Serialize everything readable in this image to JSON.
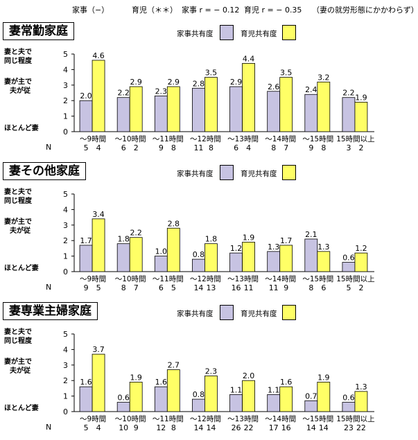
{
  "header": {
    "kaji": "家事（−）",
    "ikuji": "育児（＊＊）",
    "r_kaji": "家事 r = − 0.12",
    "r_ikuji": "育児 r = − 0.35",
    "note": "（妻の就労形態にかかわらず）"
  },
  "colors": {
    "kaji": "#c7c3e2",
    "ikuji": "#ffff66"
  },
  "y_labels": {
    "top": [
      "妻と夫で",
      "同じ程度"
    ],
    "mid": [
      "妻が主で",
      "夫が従"
    ],
    "bottom": "ほとんど妻"
  },
  "n_label": "N",
  "chart_data": [
    {
      "type": "bar",
      "title": "妻常勤家庭",
      "categories": [
        "〜9時間",
        "〜10時間",
        "〜11時間",
        "〜12時間",
        "〜13時間",
        "〜14時間",
        "〜15時間",
        "15時間以上"
      ],
      "ylim": [
        0,
        5
      ],
      "yticks": [
        0,
        1,
        2,
        3,
        4,
        5
      ],
      "series": [
        {
          "name": "家事共有度",
          "values": [
            2.0,
            2.2,
            2.3,
            2.8,
            2.9,
            2.6,
            2.4,
            2.2
          ],
          "labels": [
            "2.0",
            "2.2",
            "2.3",
            "2.8",
            "2.9",
            "2.6",
            "2.4",
            "2.2"
          ]
        },
        {
          "name": "育児共有度",
          "values": [
            4.6,
            2.9,
            2.9,
            3.5,
            4.4,
            3.5,
            3.2,
            1.9
          ],
          "labels": [
            "4.6",
            "2.9",
            "2.9",
            "3.5",
            "4.4",
            "3.5",
            "3.2",
            "1.9"
          ]
        }
      ],
      "n": [
        [
          "5",
          "4"
        ],
        [
          "6",
          "2"
        ],
        [
          "9",
          "8"
        ],
        [
          "11",
          "8"
        ],
        [
          "6",
          "4"
        ],
        [
          "8",
          "7"
        ],
        [
          "9",
          "8"
        ],
        [
          "3",
          "2"
        ]
      ]
    },
    {
      "type": "bar",
      "title": "妻その他家庭",
      "categories": [
        "〜9時間",
        "〜10時間",
        "〜11時間",
        "〜12時間",
        "〜13時間",
        "〜14時間",
        "〜15時間",
        "15時間以上"
      ],
      "ylim": [
        0,
        5
      ],
      "yticks": [
        0,
        1,
        2,
        3,
        4,
        5
      ],
      "series": [
        {
          "name": "家事共有度",
          "values": [
            1.7,
            1.8,
            1.0,
            0.8,
            1.2,
            1.3,
            2.1,
            0.6
          ],
          "labels": [
            "1.7",
            "1.8",
            "1.0",
            "0.8",
            "1.2",
            "1.3",
            "2.1",
            "0.6"
          ]
        },
        {
          "name": "育児共有度",
          "values": [
            3.4,
            2.2,
            2.8,
            1.8,
            1.9,
            1.7,
            1.3,
            1.2
          ],
          "labels": [
            "3.4",
            "2.2",
            "2.8",
            "1.8",
            "1.9",
            "1.7",
            "1.3",
            "1.2"
          ]
        }
      ],
      "n": [
        [
          "9",
          "5"
        ],
        [
          "8",
          "7"
        ],
        [
          "6",
          "5"
        ],
        [
          "14",
          "13"
        ],
        [
          "16",
          "11"
        ],
        [
          "11",
          "9"
        ],
        [
          "8",
          "6"
        ],
        [
          "5",
          "2"
        ]
      ]
    },
    {
      "type": "bar",
      "title": "妻専業主婦家庭",
      "categories": [
        "〜9時間",
        "〜10時間",
        "〜11時間",
        "〜12時間",
        "〜13時間",
        "〜14時間",
        "〜15時間",
        "15時間以上"
      ],
      "ylim": [
        0,
        5
      ],
      "yticks": [
        0,
        1,
        2,
        3,
        4,
        5
      ],
      "series": [
        {
          "name": "家事共有度",
          "values": [
            1.6,
            0.6,
            1.6,
            0.8,
            1.1,
            1.1,
            0.7,
            0.6
          ],
          "labels": [
            "1.6",
            "0.6",
            "1.6",
            "0.8",
            "1.1",
            "1.1",
            "0.7",
            "0.6"
          ]
        },
        {
          "name": "育児共有度",
          "values": [
            3.7,
            1.9,
            2.7,
            2.3,
            2.0,
            1.6,
            1.9,
            1.3
          ],
          "labels": [
            "3.7",
            "1.9",
            "2.7",
            "2.3",
            "2.0",
            "1.6",
            "1.9",
            "1.3"
          ]
        }
      ],
      "n": [
        [
          "5",
          "4"
        ],
        [
          "10",
          "9"
        ],
        [
          "12",
          "8"
        ],
        [
          "14",
          "14"
        ],
        [
          "26",
          "22"
        ],
        [
          "17",
          "16"
        ],
        [
          "14",
          "14"
        ],
        [
          "23",
          "22"
        ]
      ]
    }
  ]
}
